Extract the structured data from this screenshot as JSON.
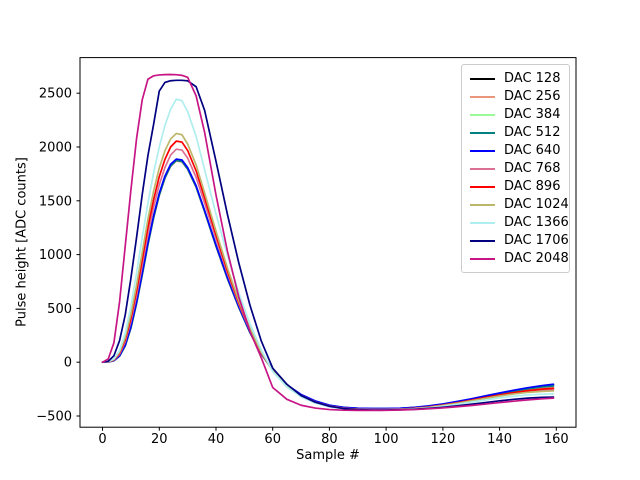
{
  "figure": {
    "background": "#ffffff",
    "frame_color": "#000000"
  },
  "axes": {
    "xlabel": "Sample #",
    "ylabel": "Pulse height [ADC counts]"
  },
  "chart_data": {
    "type": "line",
    "title": "",
    "xlabel": "Sample #",
    "ylabel": "Pulse height [ADC counts]",
    "xlim": [
      -7.95,
      166.95
    ],
    "ylim": [
      -604,
      2831
    ],
    "xticks": [
      0,
      20,
      40,
      60,
      80,
      100,
      120,
      140,
      160
    ],
    "yticks": [
      -500,
      0,
      500,
      1000,
      1500,
      2000,
      2500
    ],
    "grid": false,
    "legend_position": "upper right",
    "x": [
      0,
      2,
      4,
      6,
      8,
      10,
      12,
      14,
      16,
      18,
      20,
      22,
      24,
      26,
      28,
      30,
      33,
      36,
      40,
      44,
      48,
      52,
      56,
      60,
      65,
      70,
      75,
      80,
      85,
      90,
      95,
      100,
      105,
      110,
      115,
      120,
      125,
      130,
      135,
      140,
      145,
      150,
      155,
      159
    ],
    "series": [
      {
        "name": "DAC 128",
        "color": "#000000",
        "values": [
          0,
          2,
          14,
          58,
          155,
          322,
          550,
          818,
          1098,
          1348,
          1558,
          1718,
          1830,
          1878,
          1870,
          1800,
          1632,
          1402,
          1082,
          784,
          515,
          276,
          77,
          -72,
          -212,
          -302,
          -362,
          -401,
          -421,
          -429,
          -431,
          -431,
          -429,
          -421,
          -409,
          -392,
          -370,
          -345,
          -318,
          -291,
          -265,
          -241,
          -222,
          -212
        ]
      },
      {
        "name": "DAC 256",
        "color": "#E9967A",
        "values": [
          0,
          2,
          14,
          56,
          150,
          315,
          542,
          808,
          1088,
          1338,
          1548,
          1708,
          1820,
          1870,
          1862,
          1792,
          1625,
          1396,
          1076,
          778,
          510,
          272,
          74,
          -74,
          -214,
          -304,
          -364,
          -403,
          -423,
          -431,
          -433,
          -433,
          -431,
          -423,
          -412,
          -396,
          -375,
          -351,
          -325,
          -299,
          -275,
          -254,
          -238,
          -230
        ]
      },
      {
        "name": "DAC 384",
        "color": "#98FB98",
        "values": [
          0,
          2,
          15,
          59,
          157,
          326,
          554,
          822,
          1102,
          1352,
          1562,
          1722,
          1834,
          1882,
          1874,
          1804,
          1636,
          1406,
          1086,
          788,
          518,
          278,
          78,
          -71,
          -211,
          -301,
          -361,
          -400,
          -420,
          -428,
          -430,
          -430,
          -428,
          -420,
          -408,
          -391,
          -369,
          -344,
          -317,
          -290,
          -264,
          -242,
          -227,
          -220
        ]
      },
      {
        "name": "DAC 512",
        "color": "#008080",
        "values": [
          0,
          2,
          15,
          57,
          152,
          318,
          546,
          812,
          1092,
          1342,
          1552,
          1712,
          1824,
          1874,
          1866,
          1796,
          1628,
          1400,
          1080,
          780,
          512,
          274,
          75,
          -73,
          -213,
          -303,
          -363,
          -402,
          -422,
          -430,
          -432,
          -432,
          -430,
          -422,
          -410,
          -394,
          -372,
          -347,
          -320,
          -294,
          -269,
          -247,
          -230,
          -221
        ]
      },
      {
        "name": "DAC 640",
        "color": "#0000FF",
        "values": [
          0,
          2,
          15,
          60,
          160,
          330,
          560,
          830,
          1110,
          1360,
          1570,
          1730,
          1840,
          1888,
          1880,
          1810,
          1640,
          1410,
          1090,
          790,
          520,
          280,
          80,
          -70,
          -210,
          -300,
          -360,
          -400,
          -420,
          -428,
          -430,
          -430,
          -428,
          -419,
          -406,
          -388,
          -365,
          -340,
          -313,
          -286,
          -260,
          -237,
          -217,
          -205
        ]
      },
      {
        "name": "DAC 768",
        "color": "#DB7093",
        "values": [
          0,
          3,
          20,
          75,
          190,
          380,
          620,
          900,
          1190,
          1440,
          1650,
          1810,
          1925,
          1980,
          1972,
          1898,
          1718,
          1478,
          1148,
          828,
          543,
          293,
          84,
          -76,
          -216,
          -310,
          -370,
          -408,
          -428,
          -436,
          -438,
          -438,
          -436,
          -428,
          -416,
          -399,
          -378,
          -355,
          -331,
          -308,
          -288,
          -272,
          -261,
          -256
        ]
      },
      {
        "name": "DAC 896",
        "color": "#FF0000",
        "values": [
          0,
          3,
          22,
          85,
          210,
          410,
          665,
          955,
          1255,
          1510,
          1725,
          1885,
          2000,
          2055,
          2046,
          1968,
          1778,
          1528,
          1183,
          853,
          558,
          303,
          88,
          -78,
          -218,
          -312,
          -372,
          -410,
          -430,
          -437,
          -439,
          -439,
          -437,
          -429,
          -416,
          -398,
          -377,
          -353,
          -328,
          -304,
          -282,
          -264,
          -250,
          -243
        ]
      },
      {
        "name": "DAC 1024",
        "color": "#BDB76B",
        "values": [
          0,
          4,
          25,
          95,
          230,
          445,
          715,
          1020,
          1330,
          1590,
          1805,
          1965,
          2075,
          2126,
          2114,
          2028,
          1833,
          1573,
          1218,
          878,
          573,
          313,
          93,
          -80,
          -220,
          -315,
          -374,
          -412,
          -431,
          -438,
          -440,
          -440,
          -438,
          -431,
          -419,
          -402,
          -382,
          -359,
          -336,
          -314,
          -295,
          -280,
          -271,
          -267
        ]
      },
      {
        "name": "DAC 1366",
        "color": "#AFEEEE",
        "values": [
          0,
          4,
          30,
          110,
          270,
          520,
          830,
          1160,
          1480,
          1760,
          2000,
          2200,
          2350,
          2445,
          2430,
          2330,
          2098,
          1788,
          1378,
          998,
          648,
          356,
          112,
          -86,
          -230,
          -322,
          -380,
          -415,
          -433,
          -440,
          -442,
          -442,
          -440,
          -434,
          -424,
          -409,
          -391,
          -371,
          -351,
          -332,
          -316,
          -304,
          -297,
          -294
        ]
      },
      {
        "name": "DAC 1706",
        "color": "#000080",
        "values": [
          0,
          8,
          60,
          200,
          440,
          780,
          1160,
          1560,
          1920,
          2210,
          2520,
          2600,
          2616,
          2620,
          2620,
          2615,
          2560,
          2340,
          1868,
          1378,
          928,
          528,
          195,
          -55,
          -205,
          -310,
          -372,
          -410,
          -431,
          -441,
          -444,
          -444,
          -442,
          -437,
          -429,
          -419,
          -406,
          -391,
          -375,
          -359,
          -345,
          -334,
          -327,
          -324
        ]
      },
      {
        "name": "DAC 2048",
        "color": "#C71585",
        "values": [
          0,
          30,
          180,
          560,
          1080,
          1600,
          2080,
          2440,
          2630,
          2662,
          2670,
          2673,
          2674,
          2672,
          2666,
          2648,
          2475,
          2135,
          1555,
          1035,
          610,
          285,
          40,
          -235,
          -345,
          -400,
          -426,
          -440,
          -446,
          -448,
          -448,
          -447,
          -444,
          -440,
          -433,
          -425,
          -414,
          -402,
          -389,
          -375,
          -362,
          -350,
          -340,
          -334
        ]
      }
    ]
  }
}
